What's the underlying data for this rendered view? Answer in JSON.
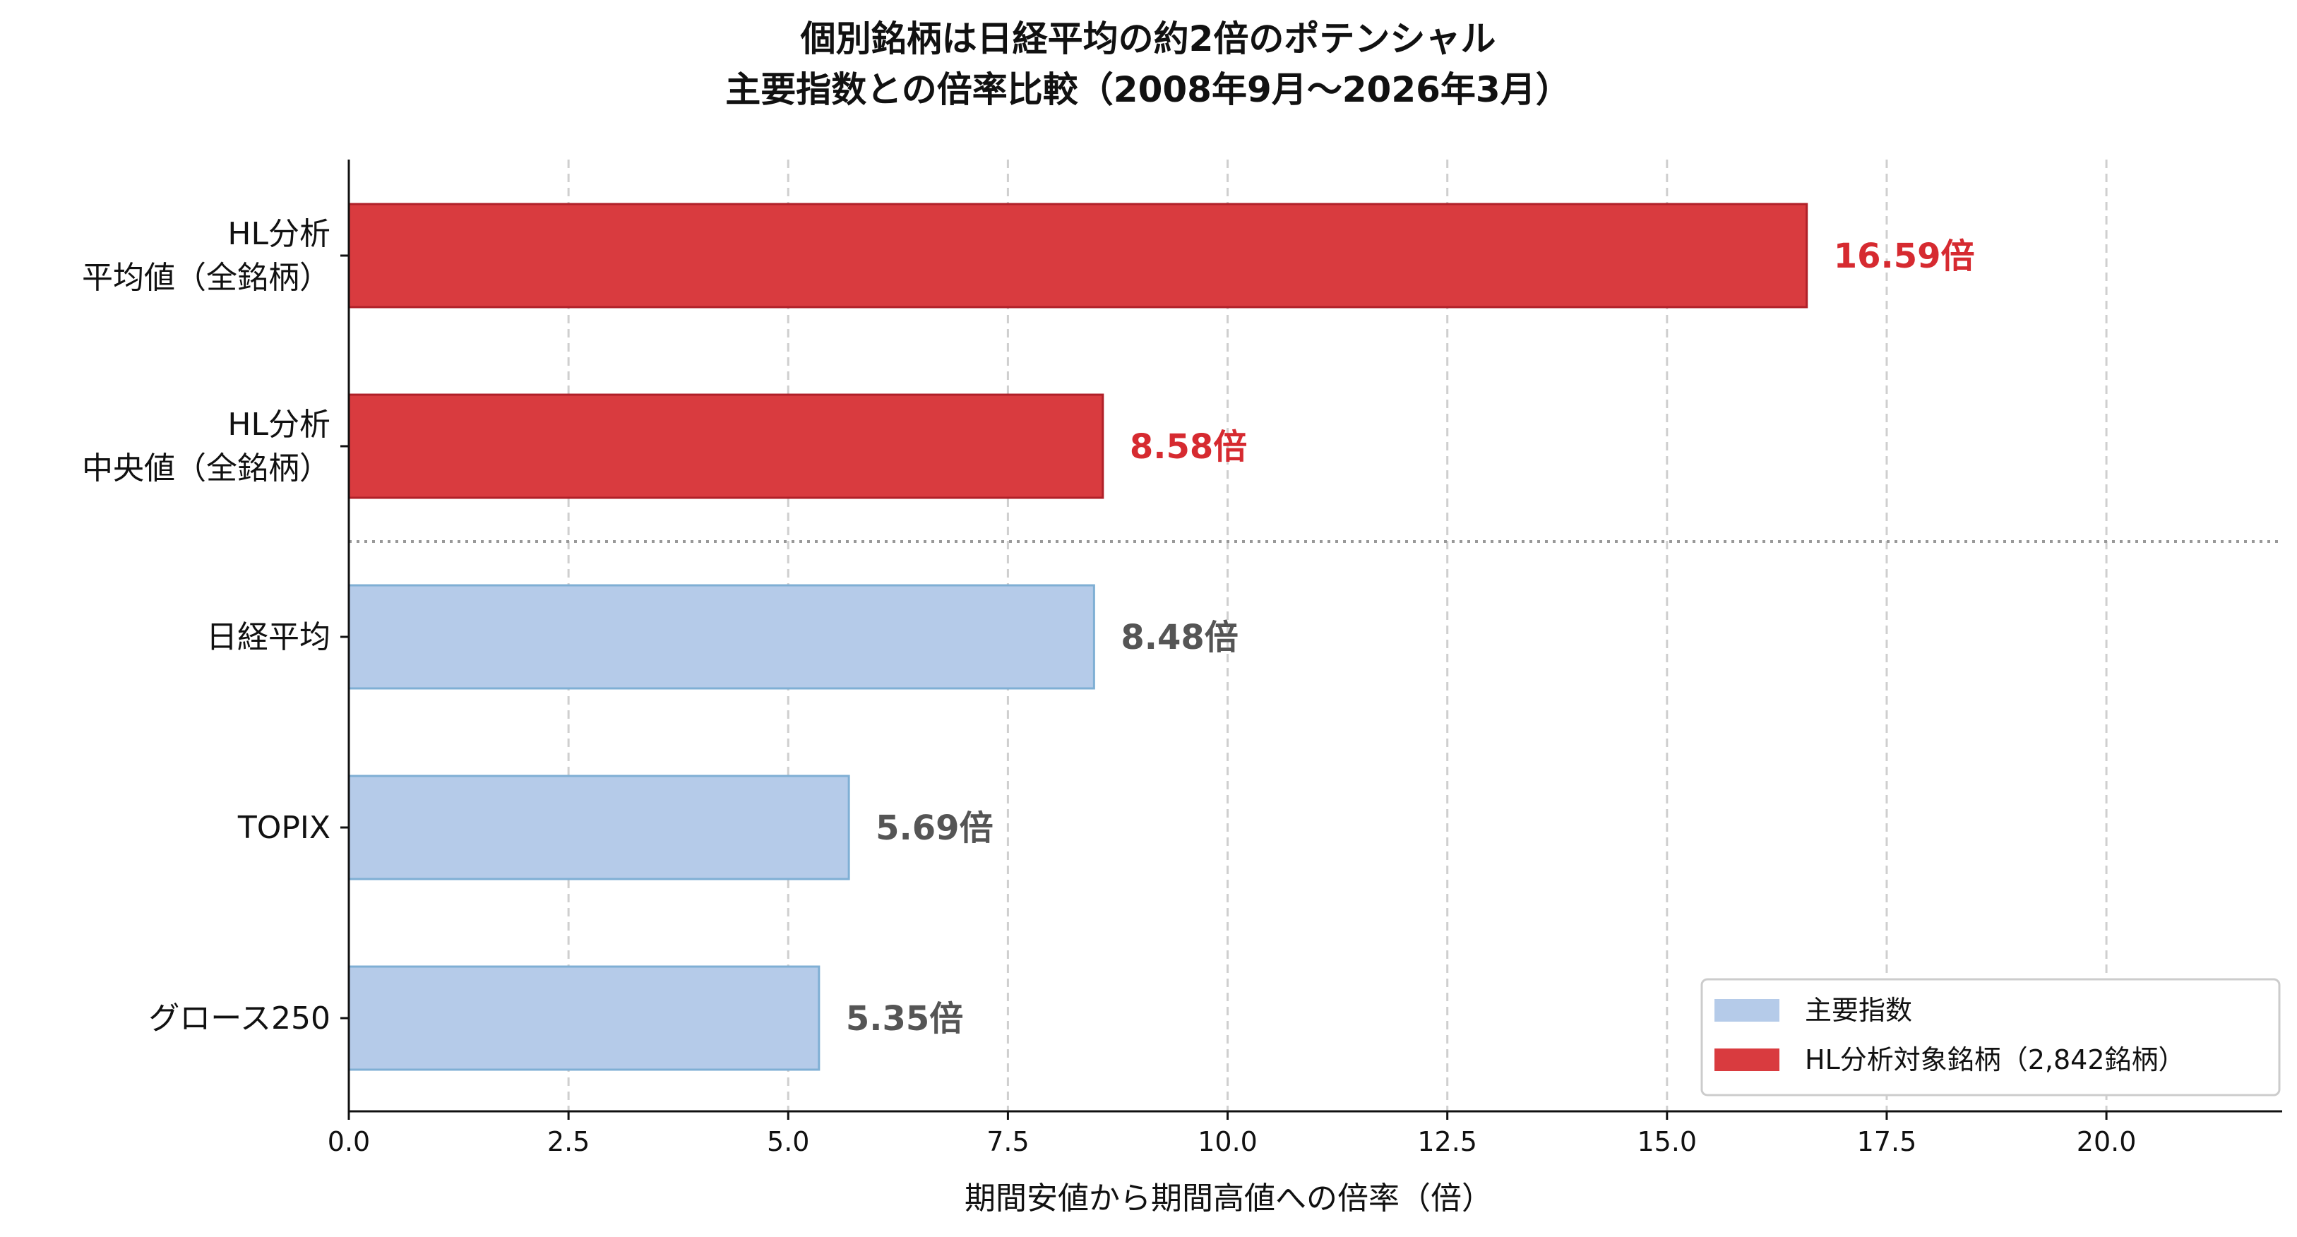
{
  "chart_data": {
    "type": "bar",
    "orientation": "horizontal",
    "title": [
      "個別銘柄は日経平均の約2倍のポテンシャル",
      "主要指数との倍率比較（2008年9月〜2026年3月）"
    ],
    "xlabel": "期間安値から期間高値への倍率（倍）",
    "ylabel": "",
    "xlim": [
      0,
      22
    ],
    "xticks": [
      0.0,
      2.5,
      5.0,
      7.5,
      10.0,
      12.5,
      15.0,
      17.5,
      20.0
    ],
    "xtick_labels": [
      "0.0",
      "2.5",
      "5.0",
      "7.5",
      "10.0",
      "12.5",
      "15.0",
      "17.5",
      "20.0"
    ],
    "grid": "vertical dashed",
    "categories": [
      [
        "HL分析",
        "平均値（全銘柄）"
      ],
      [
        "HL分析",
        "中央値（全銘柄）"
      ],
      [
        "日経平均"
      ],
      [
        "TOPIX"
      ],
      [
        "グロース250"
      ]
    ],
    "values": [
      16.59,
      8.58,
      8.48,
      5.69,
      5.35
    ],
    "value_labels": [
      "16.59倍",
      "8.58倍",
      "8.48倍",
      "5.69倍",
      "5.35倍"
    ],
    "series_index": [
      1,
      1,
      0,
      0,
      0
    ],
    "separator_after_index": 1,
    "series": [
      {
        "name": "主要指数",
        "color": "#b5cbe9",
        "edge_color": "#7fafd4",
        "label_color": "#555555"
      },
      {
        "name": "HL分析対象銘柄（2,842銘柄）",
        "color": "#d93b3f",
        "edge_color": "#b02028",
        "label_color": "#d62a30"
      }
    ],
    "legend_position": "lower-right"
  }
}
